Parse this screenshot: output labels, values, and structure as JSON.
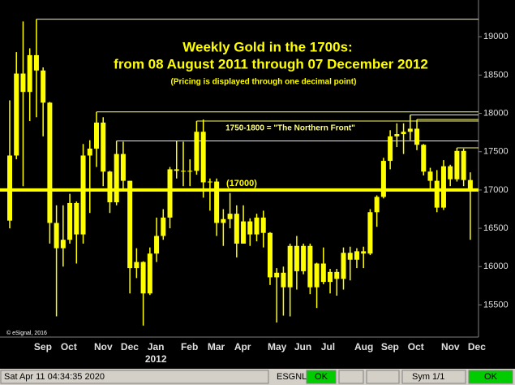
{
  "chart_data": {
    "type": "candlestick",
    "title": "Weekly Gold in the 1700s:",
    "subtitle": "from 08 August 2011 through 07 December 2012",
    "note": "(Pricing is displayed through one decimal point)",
    "annotation": "1750-1800 = \"The Northern Front\"",
    "reference_line": {
      "value": 17000,
      "label": "(17000)"
    },
    "copyright": "© eSignal, 2016",
    "color": "#ffff00",
    "categories": [
      null,
      null,
      null,
      null,
      "Sep",
      null,
      null,
      null,
      "Oct",
      null,
      null,
      null,
      null,
      "Nov",
      null,
      null,
      null,
      "Dec",
      null,
      null,
      null,
      "Jan",
      null,
      null,
      null,
      null,
      "Feb",
      null,
      null,
      null,
      "Mar",
      null,
      null,
      null,
      "Apr",
      null,
      null,
      null,
      null,
      "May",
      null,
      null,
      null,
      "Jun",
      null,
      null,
      null,
      "Jul",
      null,
      null,
      null,
      null,
      "Aug",
      null,
      null,
      null,
      "Sep",
      null,
      null,
      null,
      "Oct",
      null,
      null,
      null,
      null,
      "Nov",
      null,
      null,
      null,
      "Dec"
    ],
    "categories2": [
      null,
      null,
      null,
      null,
      null,
      null,
      null,
      null,
      null,
      null,
      null,
      null,
      null,
      null,
      null,
      null,
      null,
      null,
      null,
      null,
      null,
      "2012",
      null,
      null,
      null,
      null,
      null,
      null,
      null,
      null,
      null,
      null,
      null,
      null,
      null,
      null,
      null,
      null,
      null,
      null,
      null,
      null,
      null,
      null,
      null,
      null,
      null,
      null,
      null,
      null,
      null,
      null,
      null,
      null,
      null,
      null,
      null,
      null,
      null,
      null,
      null,
      null,
      null,
      null,
      null,
      null,
      null,
      null,
      null,
      null
    ],
    "open": [
      16600,
      17450,
      18520,
      18280,
      18760,
      18560,
      18140,
      16570,
      16240,
      16350,
      16830,
      16420,
      17450,
      17540,
      17880,
      17240,
      16840,
      17470,
      17120,
      15980,
      16060,
      15650,
      16170,
      16400,
      16640,
      17270,
      17250,
      17240,
      17250,
      17760,
      17100,
      17110,
      16570,
      16620,
      16690,
      16300,
      16590,
      16420,
      16640,
      16440,
      15860,
      15920,
      15730,
      16270,
      15940,
      16270,
      15730,
      16040,
      15800,
      15930,
      15840,
      16180,
      16090,
      16200,
      16170,
      16710,
      16910,
      17380,
      17700,
      17730,
      17760,
      17800,
      17590,
      17240,
      17120,
      16770,
      17310,
      17140,
      17510,
      17130
    ],
    "high": [
      18170,
      18800,
      19200,
      18850,
      19230,
      18600,
      18150,
      16800,
      16800,
      16950,
      16850,
      17600,
      17650,
      18020,
      17950,
      17250,
      17640,
      17630,
      17120,
      16240,
      16070,
      16250,
      16640,
      16750,
      17300,
      17640,
      17630,
      17400,
      17900,
      17920,
      17150,
      17150,
      16750,
      16960,
      16800,
      16800,
      16630,
      16690,
      16730,
      16450,
      15980,
      16000,
      16300,
      16400,
      16300,
      16300,
      16050,
      16250,
      15970,
      15970,
      16250,
      16260,
      16240,
      16260,
      16750,
      16930,
      17420,
      17780,
      17870,
      17870,
      17980,
      17920,
      17600,
      17290,
      17260,
      17390,
      17330,
      17550,
      17540,
      17230
    ],
    "low": [
      16500,
      17400,
      17050,
      17900,
      17950,
      17700,
      16300,
      15350,
      16000,
      16300,
      16040,
      16300,
      16700,
      17300,
      17050,
      16700,
      16800,
      17000,
      15650,
      15850,
      15230,
      15630,
      16060,
      16350,
      16500,
      17150,
      17050,
      17050,
      17200,
      16900,
      16730,
      16400,
      16270,
      16500,
      16120,
      16300,
      16270,
      16330,
      16250,
      15760,
      15270,
      15360,
      15350,
      15700,
      15900,
      15640,
      15460,
      15770,
      15650,
      15620,
      15700,
      15820,
      15980,
      15980,
      16150,
      16520,
      16890,
      17270,
      17560,
      17470,
      17650,
      17520,
      17190,
      17000,
      16710,
      16740,
      17050,
      17110,
      17050,
      16350
    ],
    "close": [
      17450,
      18520,
      18280,
      18760,
      18560,
      18140,
      16570,
      16240,
      16350,
      16830,
      16420,
      17450,
      17540,
      17880,
      17240,
      16840,
      17470,
      17120,
      15980,
      16060,
      15650,
      16170,
      16400,
      16640,
      17270,
      17250,
      17240,
      17250,
      17760,
      17100,
      17110,
      16570,
      16620,
      16690,
      16300,
      16590,
      16420,
      16640,
      16440,
      15860,
      15920,
      15730,
      16270,
      15940,
      16270,
      15730,
      16040,
      15800,
      15930,
      15840,
      16180,
      16090,
      16200,
      16170,
      16710,
      16910,
      17380,
      17700,
      17730,
      17760,
      17800,
      17590,
      17240,
      17120,
      16770,
      17310,
      17140,
      17510,
      17130,
      17010
    ],
    "high_lines": [
      4,
      13,
      16,
      28,
      60,
      61,
      67
    ],
    "ylim": [
      15080,
      19480
    ],
    "yticks": [
      15500,
      16000,
      16500,
      17000,
      17500,
      18000,
      18500,
      19000
    ]
  },
  "status_bar": {
    "datetime": "Sat Apr 11 04:34:35 2020",
    "feed": "ESGNL:",
    "feed_status": "OK",
    "symbol": "Sym 1/1",
    "status": "OK"
  }
}
